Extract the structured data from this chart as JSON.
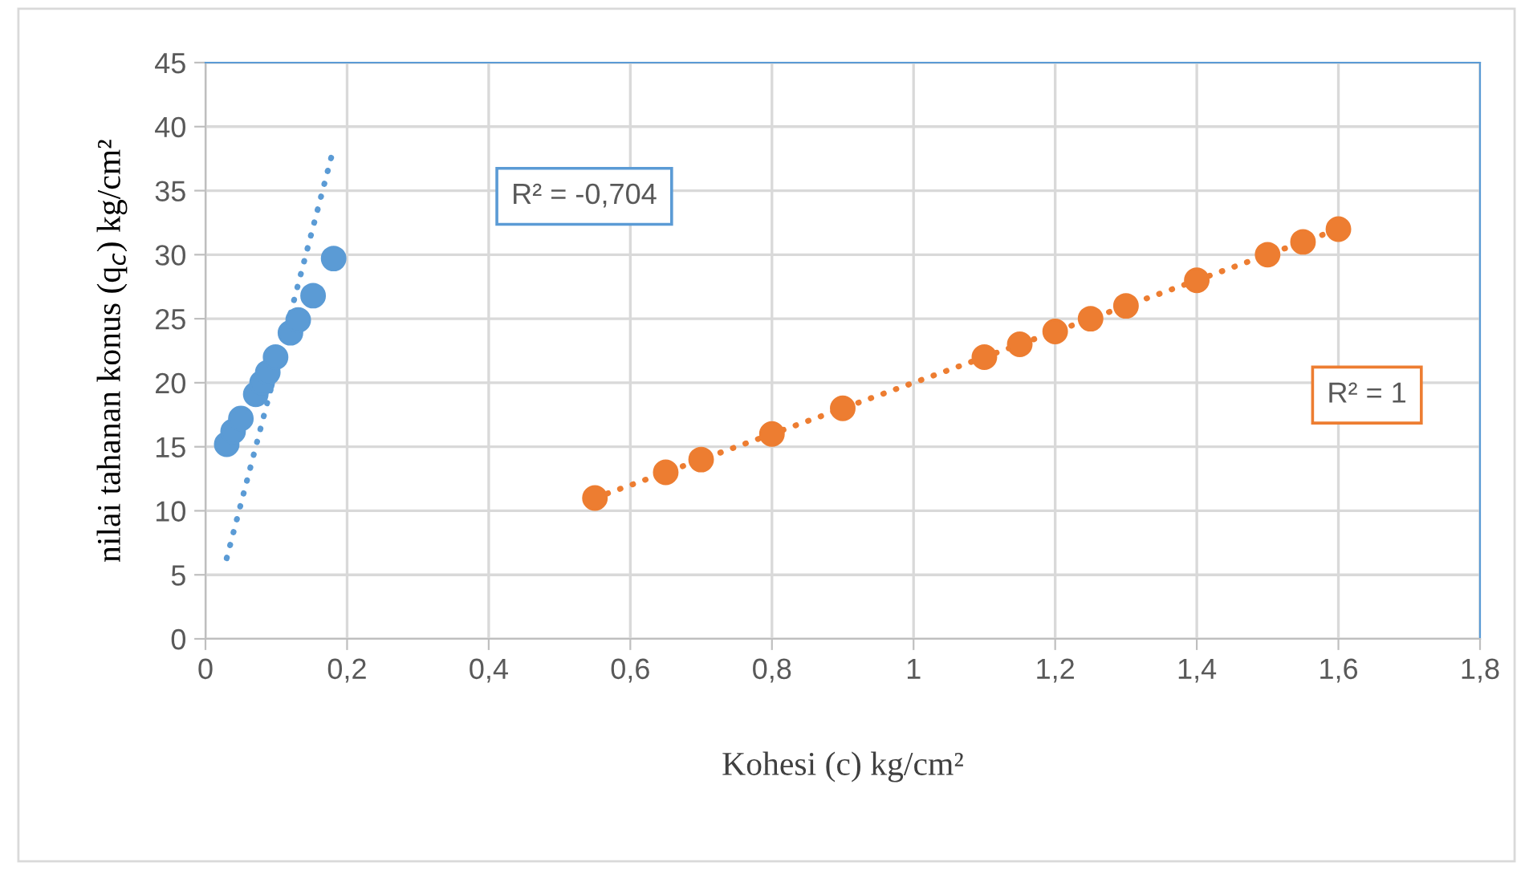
{
  "chart_data": {
    "type": "scatter",
    "xlabel": "Kohesi (c) kg/cm²",
    "ylabel": "nilai tahanan konus (q$_{c}$) kg/cm²",
    "series": [
      {
        "color": "#5b9bd5",
        "marker": "circle",
        "x": [
          0.03,
          0.039,
          0.05,
          0.071,
          0.08,
          0.088,
          0.099,
          0.12,
          0.131,
          0.152,
          0.181
        ],
        "values": [
          15.2,
          16.2,
          17.2,
          19.1,
          20,
          20.8,
          22,
          23.9,
          24.9,
          26.8,
          29.7
        ]
      },
      {
        "color": "#ed7d31",
        "marker": "circle",
        "x": [
          0.55,
          0.65,
          0.7,
          0.8,
          0.9,
          1.1,
          1.15,
          1.2,
          1.25,
          1.3,
          1.4,
          1.5,
          1.55,
          1.6
        ],
        "values": [
          11,
          13,
          14,
          16,
          18,
          22,
          23,
          24,
          25,
          26,
          28,
          30,
          31,
          32
        ]
      },
      {
        "type": "line",
        "color": "#5b9bd5",
        "line_style": "dotted",
        "x": [
          0.03,
          0.18
        ],
        "values": [
          6.3,
          38.1
        ]
      },
      {
        "type": "line",
        "color": "#ed7d31",
        "line_style": "dotted",
        "x": [
          0.55,
          1.6
        ],
        "values": [
          11,
          32
        ]
      }
    ],
    "annotations": [
      "R² = -0,704",
      "R² = 1"
    ],
    "xlim": [
      0,
      1.8
    ],
    "xticks": [
      0,
      {
        "value": 0.2,
        "label": "0,2"
      },
      {
        "value": 0.4,
        "label": "0,4"
      },
      {
        "value": 0.6,
        "label": "0,6"
      },
      {
        "value": 0.8,
        "label": "0,8"
      },
      1,
      {
        "value": 1.2,
        "label": "1,2"
      },
      {
        "value": 1.4,
        "label": "1,4"
      },
      {
        "value": 1.6,
        "label": "1,6"
      },
      {
        "value": 1.8,
        "label": "1,8"
      }
    ],
    "ylim": [
      0,
      45
    ],
    "yticks": [
      0,
      5,
      10,
      15,
      20,
      25,
      30,
      35,
      40,
      45
    ],
    "grid": true,
    "legend": false
  }
}
